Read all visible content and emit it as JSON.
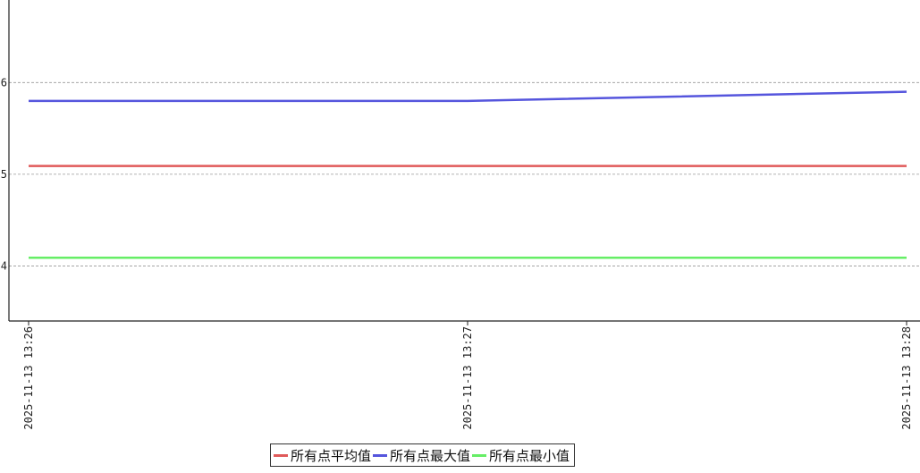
{
  "chart_data": {
    "type": "line",
    "title": "",
    "xlabel": "",
    "ylabel": "",
    "x": [
      "2025-11-13 13:26",
      "2025-11-13 13:27",
      "2025-11-13 13:28"
    ],
    "yticks": [
      "6",
      "5",
      "4"
    ],
    "ytick_values": [
      6,
      5,
      4
    ],
    "ylim": [
      3.4,
      6.9
    ],
    "grid": "y-dashed",
    "legend_position": "bottom-center",
    "series": [
      {
        "name": "所有点平均值",
        "color": "#e05a5a",
        "values": [
          5.09,
          5.09,
          5.09
        ]
      },
      {
        "name": "所有点最大值",
        "color": "#5555dd",
        "values": [
          5.8,
          5.8,
          5.9
        ]
      },
      {
        "name": "所有点最小值",
        "color": "#66ee66",
        "values": [
          4.09,
          4.09,
          4.09
        ]
      }
    ]
  }
}
